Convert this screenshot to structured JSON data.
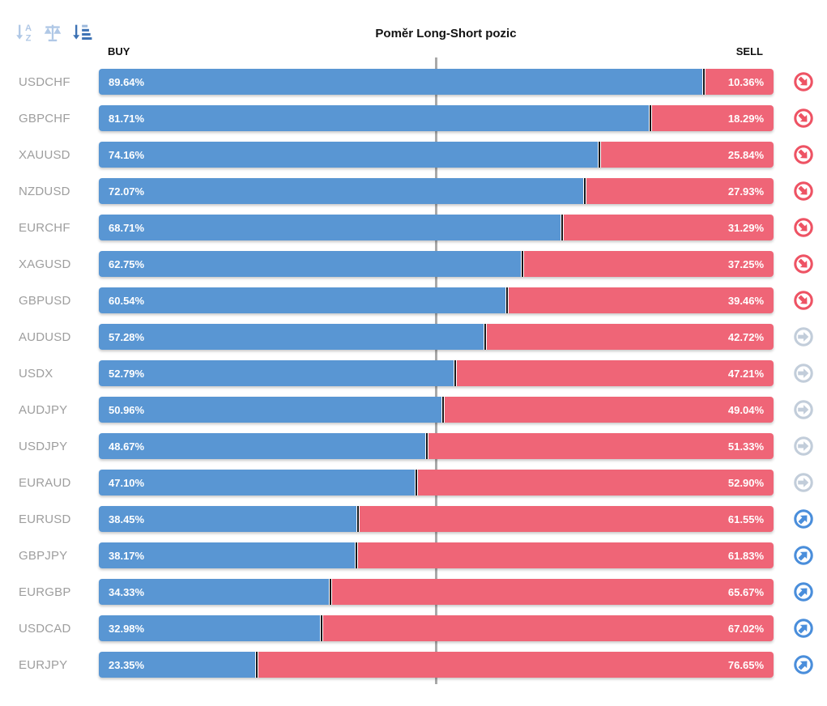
{
  "title": "Poměr Long-Short pozic",
  "axis": {
    "buy_label": "BUY",
    "sell_label": "SELL"
  },
  "toolbar": {
    "icons": [
      {
        "name": "sort-alphabetical-icon",
        "active": false
      },
      {
        "name": "scale-balance-icon",
        "active": false
      },
      {
        "name": "sort-amount-icon",
        "active": true
      }
    ]
  },
  "colors": {
    "bar_buy": "#5996d3",
    "bar_sell": "#ef6577",
    "bar_divider": "#17191c",
    "center_line": "#a9a9a9",
    "pair_label": "#9e9e9e",
    "trend_down_icon": "#ee5364",
    "trend_flat_icon": "#c2cdda",
    "trend_up_icon": "#4a8edb",
    "toolbar_icon": "#b0c8e6",
    "toolbar_icon_active": "#3d72b4"
  },
  "rows": [
    {
      "pair": "USDCHF",
      "buy": "89.64%",
      "sell": "10.36%",
      "buy_pct": 89.64,
      "trend": "down"
    },
    {
      "pair": "GBPCHF",
      "buy": "81.71%",
      "sell": "18.29%",
      "buy_pct": 81.71,
      "trend": "down"
    },
    {
      "pair": "XAUUSD",
      "buy": "74.16%",
      "sell": "25.84%",
      "buy_pct": 74.16,
      "trend": "down"
    },
    {
      "pair": "NZDUSD",
      "buy": "72.07%",
      "sell": "27.93%",
      "buy_pct": 72.07,
      "trend": "down"
    },
    {
      "pair": "EURCHF",
      "buy": "68.71%",
      "sell": "31.29%",
      "buy_pct": 68.71,
      "trend": "down"
    },
    {
      "pair": "XAGUSD",
      "buy": "62.75%",
      "sell": "37.25%",
      "buy_pct": 62.75,
      "trend": "down"
    },
    {
      "pair": "GBPUSD",
      "buy": "60.54%",
      "sell": "39.46%",
      "buy_pct": 60.54,
      "trend": "down"
    },
    {
      "pair": "AUDUSD",
      "buy": "57.28%",
      "sell": "42.72%",
      "buy_pct": 57.28,
      "trend": "flat"
    },
    {
      "pair": "USDX",
      "buy": "52.79%",
      "sell": "47.21%",
      "buy_pct": 52.79,
      "trend": "flat"
    },
    {
      "pair": "AUDJPY",
      "buy": "50.96%",
      "sell": "49.04%",
      "buy_pct": 50.96,
      "trend": "flat"
    },
    {
      "pair": "USDJPY",
      "buy": "48.67%",
      "sell": "51.33%",
      "buy_pct": 48.67,
      "trend": "flat"
    },
    {
      "pair": "EURAUD",
      "buy": "47.10%",
      "sell": "52.90%",
      "buy_pct": 47.1,
      "trend": "flat"
    },
    {
      "pair": "EURUSD",
      "buy": "38.45%",
      "sell": "61.55%",
      "buy_pct": 38.45,
      "trend": "up"
    },
    {
      "pair": "GBPJPY",
      "buy": "38.17%",
      "sell": "61.83%",
      "buy_pct": 38.17,
      "trend": "up"
    },
    {
      "pair": "EURGBP",
      "buy": "34.33%",
      "sell": "65.67%",
      "buy_pct": 34.33,
      "trend": "up"
    },
    {
      "pair": "USDCAD",
      "buy": "32.98%",
      "sell": "67.02%",
      "buy_pct": 32.98,
      "trend": "up"
    },
    {
      "pair": "EURJPY",
      "buy": "23.35%",
      "sell": "76.65%",
      "buy_pct": 23.35,
      "trend": "up"
    }
  ],
  "chart_data": {
    "type": "bar",
    "orientation": "horizontal-stacked",
    "title": "Poměr Long-Short pozic",
    "categories": [
      "USDCHF",
      "GBPCHF",
      "XAUUSD",
      "NZDUSD",
      "EURCHF",
      "XAGUSD",
      "GBPUSD",
      "AUDUSD",
      "USDX",
      "AUDJPY",
      "USDJPY",
      "EURAUD",
      "EURUSD",
      "GBPJPY",
      "EURGBP",
      "USDCAD",
      "EURJPY"
    ],
    "series": [
      {
        "name": "BUY",
        "color": "#5996d3",
        "values": [
          89.64,
          81.71,
          74.16,
          72.07,
          68.71,
          62.75,
          60.54,
          57.28,
          52.79,
          50.96,
          48.67,
          47.1,
          38.45,
          38.17,
          34.33,
          32.98,
          23.35
        ]
      },
      {
        "name": "SELL",
        "color": "#ef6577",
        "values": [
          10.36,
          18.29,
          25.84,
          27.93,
          31.29,
          37.25,
          39.46,
          42.72,
          47.21,
          49.04,
          51.33,
          52.9,
          61.55,
          61.83,
          65.67,
          67.02,
          76.65
        ]
      }
    ],
    "trend_per_row": [
      "down",
      "down",
      "down",
      "down",
      "down",
      "down",
      "down",
      "flat",
      "flat",
      "flat",
      "flat",
      "flat",
      "up",
      "up",
      "up",
      "up",
      "up"
    ],
    "xlim": [
      0,
      100
    ],
    "center_reference_line": 50,
    "grid": false,
    "legend_position": "top (BUY left, SELL right)"
  }
}
